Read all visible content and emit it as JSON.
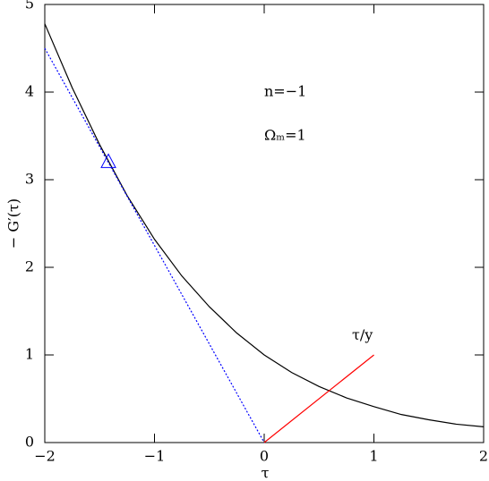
{
  "chart_data": {
    "type": "line",
    "xlabel": "τ",
    "ylabel": "− G′(τ)",
    "xlim": [
      -2,
      2
    ],
    "ylim": [
      0,
      5
    ],
    "xticks": [
      {
        "value": -2,
        "label": "−2"
      },
      {
        "value": -1,
        "label": "−1"
      },
      0,
      1,
      2
    ],
    "yticks": [
      0,
      1,
      2,
      3,
      4,
      5
    ],
    "series": [
      {
        "x": [
          -2,
          -1.75,
          -1.5,
          -1.25,
          -1,
          -0.75,
          -0.5,
          -0.25,
          0,
          0.25,
          0.5,
          0.75,
          1,
          1.25,
          1.5,
          1.75,
          2
        ],
        "values": [
          4.78,
          4.05,
          3.4,
          2.82,
          2.32,
          1.9,
          1.55,
          1.25,
          1.0,
          0.8,
          0.64,
          0.51,
          0.41,
          0.32,
          0.26,
          0.21,
          0.18
        ],
        "color": "#000000",
        "style": "solid"
      },
      {
        "x": [
          -2,
          0
        ],
        "values": [
          4.5,
          0
        ],
        "color": "#0000ff",
        "style": "dotted"
      },
      {
        "x": [
          0,
          1
        ],
        "values": [
          0,
          1
        ],
        "color": "#ff0000",
        "style": "solid"
      },
      {
        "x": [
          -1.42
        ],
        "values": [
          3.2
        ],
        "color": "#0000ff",
        "marker": "triangle"
      }
    ],
    "annotations": [
      {
        "text": "n=−1",
        "x": 0.0,
        "y": 4.0
      },
      {
        "text": "Ωₘ=1",
        "x": 0.0,
        "y": 3.5
      },
      {
        "text": "τ/y",
        "x": 0.8,
        "y": 1.22
      }
    ]
  }
}
